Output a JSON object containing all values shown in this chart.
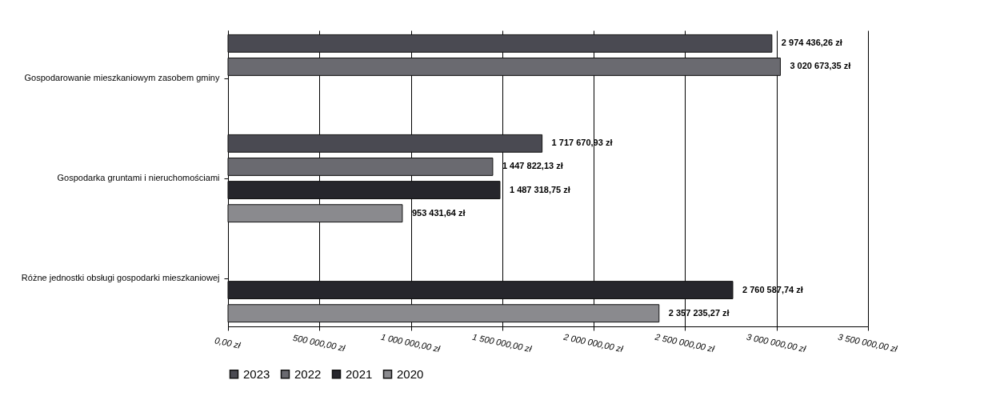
{
  "chart_data": {
    "type": "bar",
    "orientation": "horizontal",
    "categories": [
      "Gospodarowanie mieszkaniowym zasobem gminy",
      "Gospodarka gruntami i nieruchomościami",
      "Różne jednostki obsługi gospodarki mieszkaniowej"
    ],
    "series": [
      {
        "name": "2023",
        "color": "#4a4a52",
        "values": [
          2974436.26,
          1717670.93,
          null
        ],
        "value_labels": [
          "2 974 436,26 zł",
          "1 717 670,93 zł",
          null
        ]
      },
      {
        "name": "2022",
        "color": "#6a6a70",
        "values": [
          3020673.35,
          1447822.13,
          null
        ],
        "value_labels": [
          "3 020 673,35 zł",
          "1 447 822,13 zł",
          null
        ]
      },
      {
        "name": "2021",
        "color": "#26262c",
        "values": [
          null,
          1487318.75,
          2760587.74
        ],
        "value_labels": [
          null,
          "1 487 318,75 zł",
          "2 760 587,74 zł"
        ]
      },
      {
        "name": "2020",
        "color": "#8a8a8e",
        "values": [
          null,
          953431.64,
          2357235.27
        ],
        "value_labels": [
          null,
          "953 431,64 zł",
          "2 357 235,27 zł"
        ]
      }
    ],
    "xlim": [
      0,
      3500000
    ],
    "xticks": [
      {
        "value": 0,
        "label": "0,00 zł"
      },
      {
        "value": 500000,
        "label": "500 000,00 zł"
      },
      {
        "value": 1000000,
        "label": "1 000 000,00 zł"
      },
      {
        "value": 1500000,
        "label": "1 500 000,00 zł"
      },
      {
        "value": 2000000,
        "label": "2 000 000,00 zł"
      },
      {
        "value": 2500000,
        "label": "2 500 000,00 zł"
      },
      {
        "value": 3000000,
        "label": "3 000 000,00 zł"
      },
      {
        "value": 3500000,
        "label": "3 500 000,00 zł"
      }
    ],
    "grid": "x",
    "legend": "bottom"
  }
}
